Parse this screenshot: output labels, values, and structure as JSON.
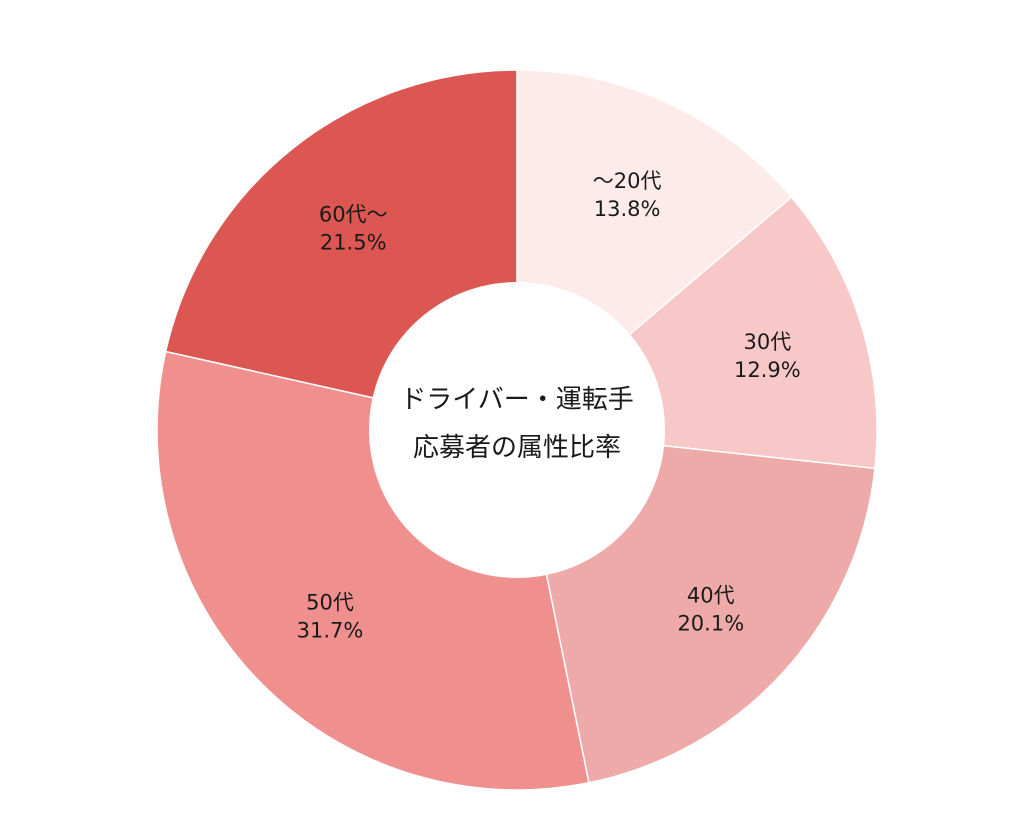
{
  "chart_data": {
    "type": "pie",
    "donut": true,
    "center_title": [
      "ドライバー・運転手",
      "応募者の属性比率"
    ],
    "categories": [
      "～20代",
      "30代",
      "40代",
      "50代",
      "60代～"
    ],
    "values": [
      13.8,
      12.9,
      20.1,
      31.7,
      21.5
    ],
    "value_labels": [
      "13.8%",
      "12.9%",
      "20.1%",
      "31.7%",
      "21.5%"
    ],
    "colors": [
      "#fdebea",
      "#f8c8c8",
      "#eeaaa9",
      "#ef908f",
      "#dc5752"
    ],
    "start": "top",
    "direction": "clockwise",
    "legend": "none"
  }
}
